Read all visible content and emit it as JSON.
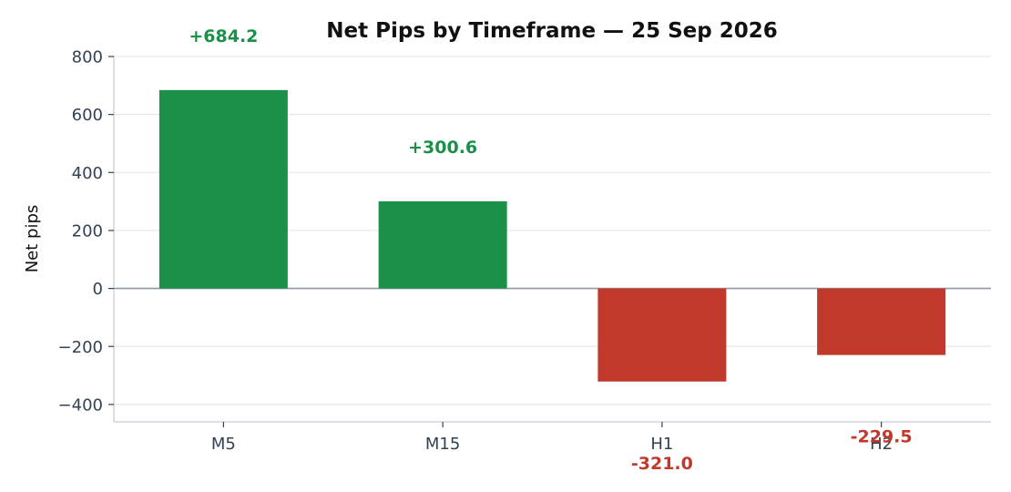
{
  "chart_data": {
    "type": "bar",
    "title": "Net Pips by Timeframe — 25 Sep 2026",
    "xlabel": "",
    "ylabel": "Net pips",
    "categories": [
      "M5",
      "M15",
      "H1",
      "H2"
    ],
    "values": [
      684.2,
      300.6,
      -321.0,
      -229.5
    ],
    "data_labels": [
      "+684.2",
      "+300.6",
      "-321.0",
      "-229.5"
    ],
    "ylim": [
      -460,
      800
    ],
    "yticks": [
      800,
      600,
      400,
      200,
      0,
      -200,
      -400
    ],
    "ytick_labels": [
      "800",
      "600",
      "400",
      "200",
      "0",
      "−200",
      "−400"
    ],
    "grid": true,
    "colors": {
      "positive": "#1b9048",
      "negative": "#c0392b",
      "zero_line": "#8a9aa6",
      "grid": "#e5e7eb",
      "axis": "#d1d5db"
    }
  }
}
